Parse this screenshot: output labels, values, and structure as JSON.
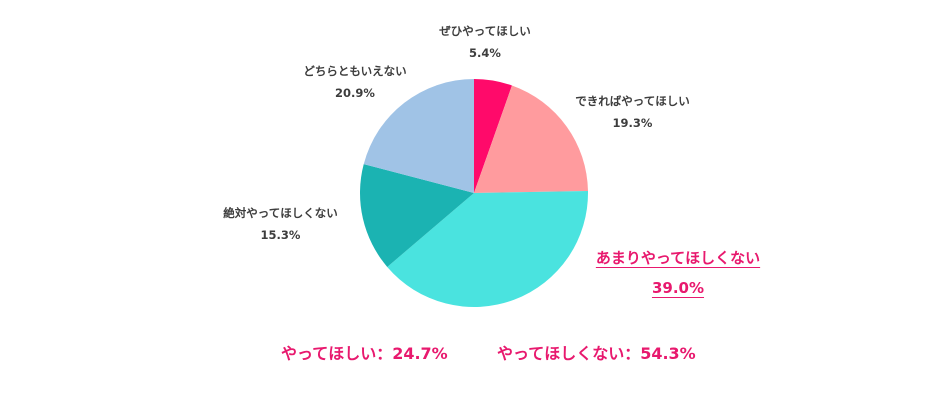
{
  "chart_data": {
    "type": "pie",
    "slices": [
      {
        "label": "ぜひやってほしい",
        "value": 5.4,
        "display": "5.4%",
        "color": "#ff0a6a"
      },
      {
        "label": "できればやってほしい",
        "value": 19.3,
        "display": "19.3%",
        "color": "#ff9b9e"
      },
      {
        "label": "あまりやってほしくない",
        "value": 39.0,
        "display": "39.0%",
        "color": "#4ae3df",
        "highlight": true
      },
      {
        "label": "絶対やってほしくない",
        "value": 15.3,
        "display": "15.3%",
        "color": "#1bb3b2"
      },
      {
        "label": "どちらともいえない",
        "value": 20.9,
        "display": "20.9%",
        "color": "#a0c3e6"
      }
    ]
  },
  "summary": {
    "want": "やってほしい：24.7%",
    "not_want": "やってほしくない：54.3%"
  }
}
